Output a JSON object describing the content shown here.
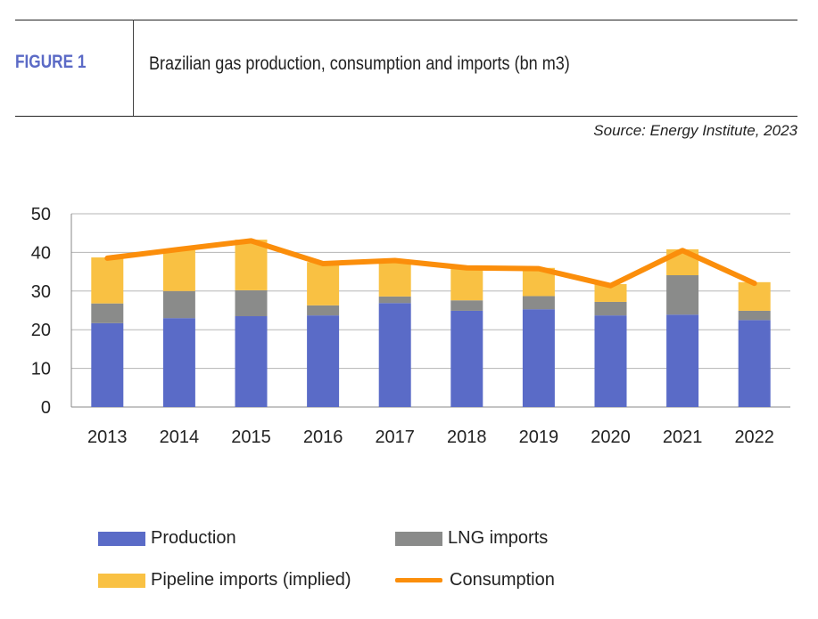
{
  "figure": {
    "label": "FIGURE 1",
    "title": "Brazilian gas production, consumption and imports (bn m3)",
    "source": "Source:  Energy Institute, 2023"
  },
  "chart_data": {
    "type": "bar",
    "stacked": true,
    "categories": [
      "2013",
      "2014",
      "2015",
      "2016",
      "2017",
      "2018",
      "2019",
      "2020",
      "2021",
      "2022"
    ],
    "ylim": [
      0,
      50
    ],
    "yticks": [
      0,
      10,
      20,
      30,
      40,
      50
    ],
    "grid": true,
    "legend_position": "bottom",
    "series": [
      {
        "name": "Production",
        "type": "bar",
        "color": "#5a6bc7",
        "values": [
          21.7,
          23.0,
          23.5,
          23.7,
          26.9,
          24.9,
          25.3,
          23.7,
          23.9,
          22.5
        ]
      },
      {
        "name": "LNG imports",
        "type": "bar",
        "color": "#8a8b8a",
        "values": [
          5.1,
          7.0,
          6.7,
          2.6,
          1.7,
          2.7,
          3.4,
          3.5,
          10.2,
          2.4
        ]
      },
      {
        "name": "Pipeline imports (implied)",
        "type": "bar",
        "color": "#f9c143",
        "values": [
          11.9,
          10.6,
          13.1,
          11.2,
          9.2,
          8.6,
          7.3,
          4.6,
          6.7,
          7.4
        ]
      },
      {
        "name": "Consumption",
        "type": "line",
        "color": "#fb8e0b",
        "values": [
          38.5,
          40.8,
          43.0,
          37.1,
          37.9,
          36.0,
          35.8,
          31.4,
          40.5,
          32.0
        ]
      }
    ]
  }
}
